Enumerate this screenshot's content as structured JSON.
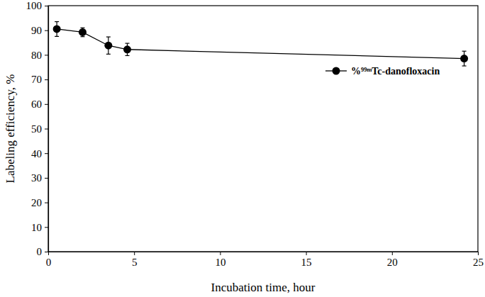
{
  "chart_data": {
    "type": "line",
    "x_label": "Incubation time, hour",
    "y_label": "Labeling efficiency, %",
    "xlim": [
      0,
      25
    ],
    "xticks": [
      0,
      5,
      10,
      15,
      20,
      25
    ],
    "ylim": [
      0,
      100
    ],
    "yticks": [
      0,
      10,
      20,
      30,
      40,
      50,
      60,
      70,
      80,
      90,
      100
    ],
    "x": [
      0.5,
      2,
      3.5,
      4.6,
      24.2
    ],
    "series": [
      {
        "name": "%⁹⁹ᵐTc-danofloxacin",
        "color": "#000000",
        "marker": "circle",
        "line_style": "solid",
        "values": [
          90.5,
          89.2,
          83.8,
          82.2,
          78.5
        ],
        "errors": [
          3,
          1.8,
          3.5,
          2.5,
          3
        ]
      }
    ],
    "legend": "upper right"
  }
}
